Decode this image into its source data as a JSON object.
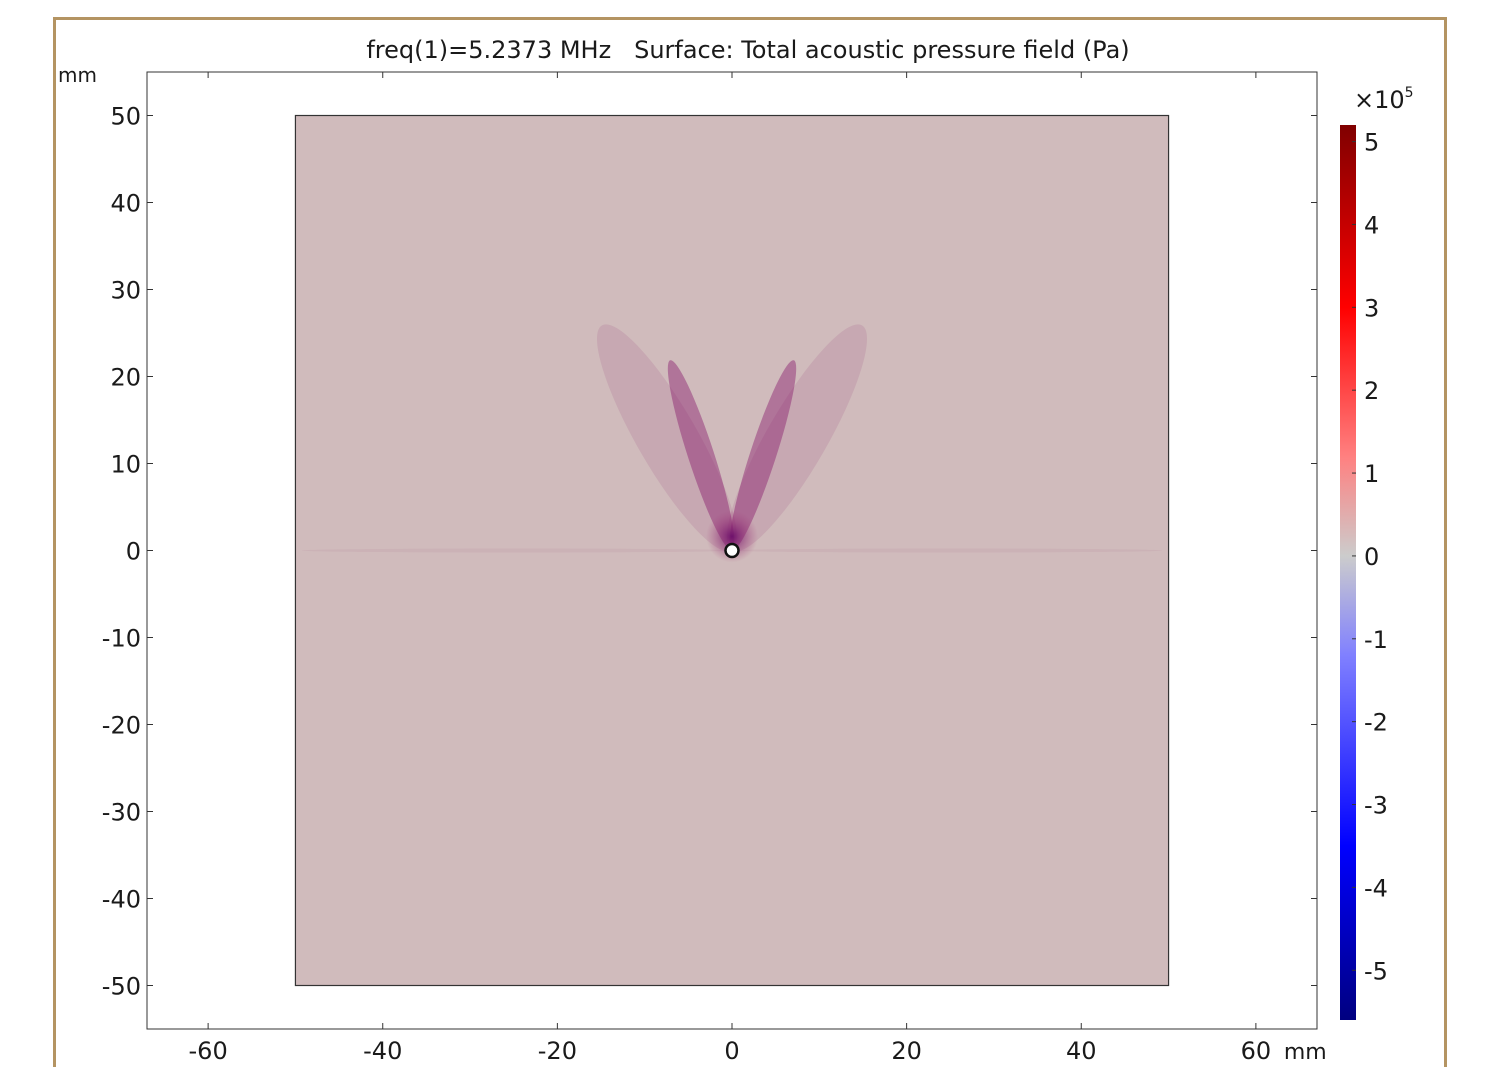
{
  "chart_data": {
    "type": "heatmap",
    "title": "freq(1)=5.2373 MHz   Surface: Total acoustic pressure field (Pa)",
    "x_unit": "mm",
    "y_unit": "mm",
    "xlim": [
      -67,
      67
    ],
    "ylim": [
      -55,
      55
    ],
    "x_ticks": [
      -60,
      -40,
      -20,
      0,
      20,
      40,
      60
    ],
    "y_ticks": [
      50,
      40,
      30,
      20,
      10,
      0,
      -10,
      -20,
      -30,
      -40,
      -50
    ],
    "domain": {
      "x": [
        -50,
        50
      ],
      "y": [
        -50,
        50
      ]
    },
    "source_point": {
      "x": 0,
      "y": 0
    },
    "field_background_value": 0.3,
    "colorbar": {
      "multiplier": "×10",
      "exponent": "5",
      "range": [
        -5.6,
        5.2
      ],
      "ticks": [
        5,
        4,
        3,
        2,
        1,
        0,
        -1,
        -2,
        -3,
        -4,
        -5
      ],
      "stops": [
        {
          "value": -5.6,
          "color": "#000080"
        },
        {
          "value": -3.5,
          "color": "#0000ff"
        },
        {
          "value": -1.2,
          "color": "#8080ff"
        },
        {
          "value": 0,
          "color": "#cccccc"
        },
        {
          "value": 1.2,
          "color": "#ff8080"
        },
        {
          "value": 3.0,
          "color": "#ff0000"
        },
        {
          "value": 5.2,
          "color": "#800000"
        }
      ]
    },
    "grid": false,
    "legend": "right"
  }
}
